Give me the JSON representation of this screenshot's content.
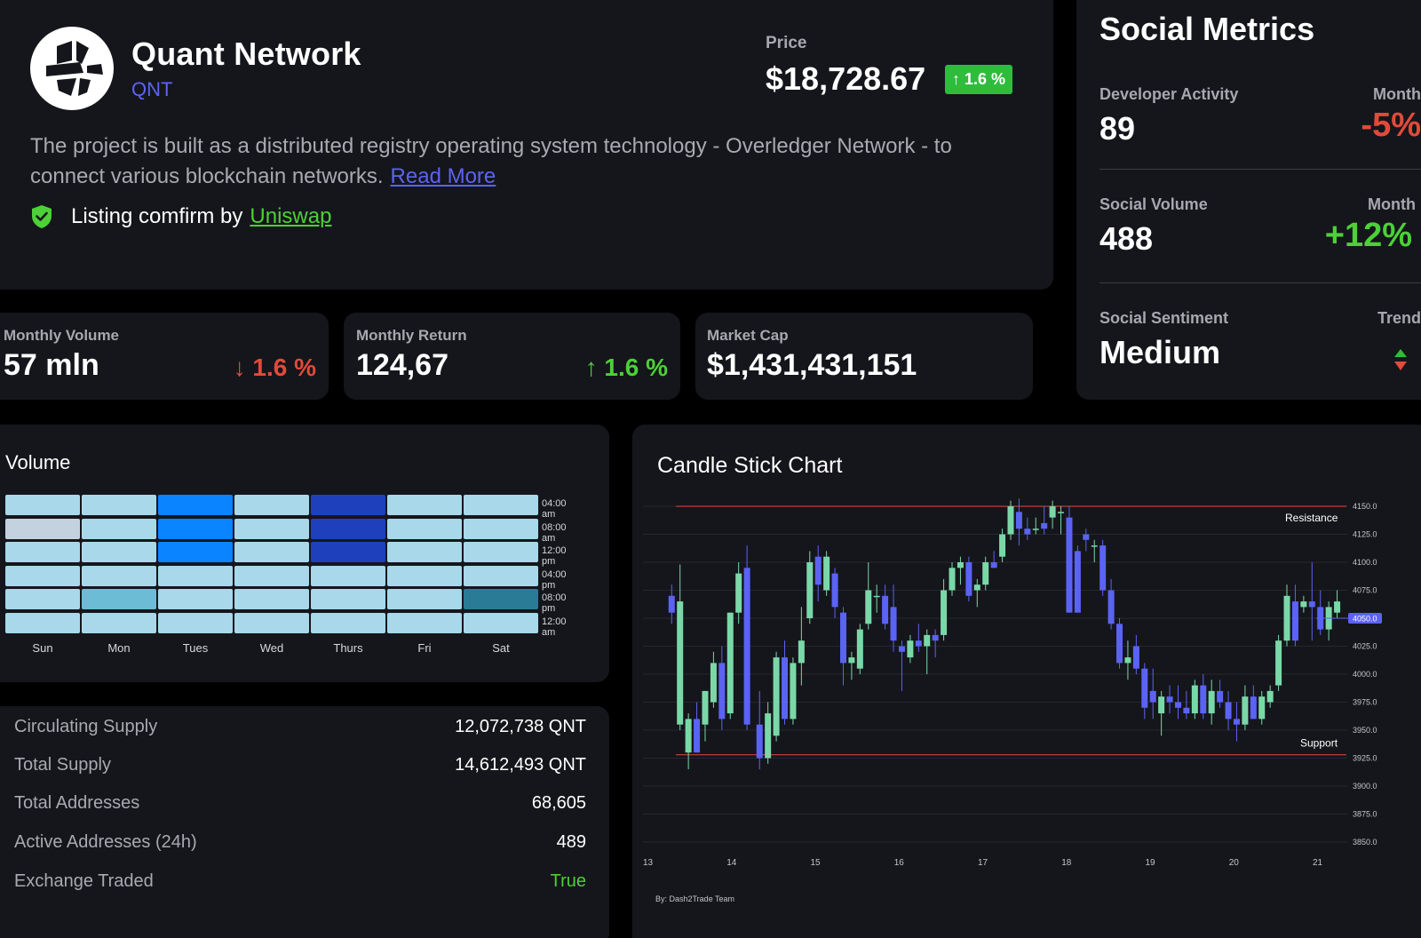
{
  "header": {
    "coin_name": "Quant Network",
    "coin_symbol": "QNT",
    "price_label": "Price",
    "price_value": "$18,728.67",
    "price_change": "↑ 1.6 %",
    "description": "The project is built as a distributed registry operating system technology - Overledger Network - to connect various blockchain networks.",
    "read_more": "Read More",
    "listing_text": "Listing comfirm by",
    "listing_link": "Uniswap",
    "logo_icon": "quant-logo-icon",
    "shield_icon": "shield-check-icon"
  },
  "stats": [
    {
      "label": "Monthly Volume",
      "value": "57 mln",
      "change": "↓ 1.6 %",
      "direction": "down"
    },
    {
      "label": "Monthly Return",
      "value": "124,67",
      "change": "↑ 1.6 %",
      "direction": "up"
    },
    {
      "label": "Market Cap",
      "value": "$1,431,431,151",
      "change": "",
      "direction": "none"
    }
  ],
  "social": {
    "title": "Social Metrics",
    "metrics": [
      {
        "label": "Developer Activity",
        "period": "Month",
        "value": "89",
        "change": "-5%",
        "direction": "down"
      },
      {
        "label": "Social Volume",
        "period": "Month",
        "value": "488",
        "change": "+12%",
        "direction": "up"
      },
      {
        "label": "Social Sentiment",
        "period": "Trend",
        "value": "Medium",
        "change": "",
        "direction": "trend"
      }
    ]
  },
  "volume": {
    "title": "Volume",
    "days": [
      "Sun",
      "Mon",
      "Tues",
      "Wed",
      "Thurs",
      "Fri",
      "Sat"
    ],
    "times": [
      "04:00 am",
      "08:00 am",
      "12:00 pm",
      "04:00 pm",
      "08:00 pm",
      "12:00 am"
    ],
    "colors": {
      "light": "#a8d8ea",
      "pale": "#c4d2e0",
      "bright": "#0a84ff",
      "dark": "#1e40bd",
      "medium": "#6bbcd4",
      "deep": "#2a7b96"
    },
    "grid": [
      [
        "light",
        "light",
        "bright",
        "light",
        "dark",
        "light",
        "light"
      ],
      [
        "pale",
        "light",
        "bright",
        "light",
        "dark",
        "light",
        "light"
      ],
      [
        "light",
        "light",
        "bright",
        "light",
        "dark",
        "light",
        "light"
      ],
      [
        "light",
        "light",
        "light",
        "light",
        "light",
        "light",
        "light"
      ],
      [
        "light",
        "medium",
        "light",
        "light",
        "light",
        "light",
        "deep"
      ],
      [
        "light",
        "light",
        "light",
        "light",
        "light",
        "light",
        "light"
      ]
    ]
  },
  "supply": [
    {
      "label": "Circulating Supply",
      "value": "12,072,738 QNT"
    },
    {
      "label": "Total Supply",
      "value": "14,612,493 QNT"
    },
    {
      "label": "Total Addresses",
      "value": "68,605"
    },
    {
      "label": "Active Addresses (24h)",
      "value": "489"
    },
    {
      "label": "Exchange Traded",
      "value": "True"
    }
  ],
  "chart_data": {
    "type": "candlestick",
    "title": "Candle Stick Chart",
    "credit": "By: Dash2Trade Team",
    "x_labels": [
      "13",
      "14",
      "15",
      "16",
      "17",
      "18",
      "19",
      "20",
      "21"
    ],
    "y_ticks": [
      4150.0,
      4125.0,
      4100.0,
      4075.0,
      4050.0,
      4025.0,
      4000.0,
      3975.0,
      3950.0,
      3925.0,
      3900.0,
      3875.0,
      3850.0
    ],
    "ylim": [
      3850,
      4150
    ],
    "current_price": "4050.0",
    "resistance": {
      "label": "Resistance",
      "value": 4150
    },
    "support": {
      "label": "Support",
      "value": 3928
    },
    "colors": {
      "up": "#7ad8a8",
      "down": "#5b63f5",
      "line": "#e24a3b"
    },
    "candles": [
      {
        "x": 13.3,
        "o": 4070,
        "h": 4080,
        "l": 4045,
        "c": 4055
      },
      {
        "x": 13.4,
        "o": 3955,
        "h": 4098,
        "l": 3950,
        "c": 4065
      },
      {
        "x": 13.5,
        "o": 3930,
        "h": 3965,
        "l": 3915,
        "c": 3960
      },
      {
        "x": 13.6,
        "o": 3960,
        "h": 3975,
        "l": 3930,
        "c": 3930
      },
      {
        "x": 13.7,
        "o": 3955,
        "h": 3985,
        "l": 3940,
        "c": 3985
      },
      {
        "x": 13.8,
        "o": 3975,
        "h": 4020,
        "l": 3970,
        "c": 4010
      },
      {
        "x": 13.9,
        "o": 4010,
        "h": 4025,
        "l": 3950,
        "c": 3960
      },
      {
        "x": 14.0,
        "o": 3965,
        "h": 4055,
        "l": 3960,
        "c": 4055
      },
      {
        "x": 14.1,
        "o": 4055,
        "h": 4100,
        "l": 4045,
        "c": 4090
      },
      {
        "x": 14.2,
        "o": 4095,
        "h": 4115,
        "l": 3950,
        "c": 3955
      },
      {
        "x": 14.35,
        "o": 3955,
        "h": 3985,
        "l": 3915,
        "c": 3925
      },
      {
        "x": 14.45,
        "o": 3925,
        "h": 3975,
        "l": 3920,
        "c": 3965
      },
      {
        "x": 14.55,
        "o": 3945,
        "h": 4020,
        "l": 3940,
        "c": 4015
      },
      {
        "x": 14.65,
        "o": 4015,
        "h": 4030,
        "l": 3955,
        "c": 3960
      },
      {
        "x": 14.75,
        "o": 3960,
        "h": 4015,
        "l": 3955,
        "c": 4010
      },
      {
        "x": 14.85,
        "o": 4010,
        "h": 4060,
        "l": 3990,
        "c": 4030
      },
      {
        "x": 14.95,
        "o": 4050,
        "h": 4110,
        "l": 4045,
        "c": 4100
      },
      {
        "x": 15.05,
        "o": 4105,
        "h": 4115,
        "l": 4065,
        "c": 4080
      },
      {
        "x": 15.15,
        "o": 4075,
        "h": 4110,
        "l": 4070,
        "c": 4105
      },
      {
        "x": 15.25,
        "o": 4090,
        "h": 4095,
        "l": 4050,
        "c": 4060
      },
      {
        "x": 15.35,
        "o": 4055,
        "h": 4060,
        "l": 3990,
        "c": 4010
      },
      {
        "x": 15.45,
        "o": 4010,
        "h": 4020,
        "l": 3995,
        "c": 4015
      },
      {
        "x": 15.55,
        "o": 4005,
        "h": 4045,
        "l": 4000,
        "c": 4040
      },
      {
        "x": 15.65,
        "o": 4045,
        "h": 4100,
        "l": 4040,
        "c": 4075
      },
      {
        "x": 15.75,
        "o": 4070,
        "h": 4080,
        "l": 4055,
        "c": 4070
      },
      {
        "x": 15.85,
        "o": 4070,
        "h": 4080,
        "l": 4040,
        "c": 4045
      },
      {
        "x": 15.95,
        "o": 4060,
        "h": 4080,
        "l": 4020,
        "c": 4030
      },
      {
        "x": 16.05,
        "o": 4025,
        "h": 4030,
        "l": 3985,
        "c": 4020
      },
      {
        "x": 16.15,
        "o": 4015,
        "h": 4035,
        "l": 4010,
        "c": 4030
      },
      {
        "x": 16.25,
        "o": 4030,
        "h": 4045,
        "l": 4020,
        "c": 4025
      },
      {
        "x": 16.35,
        "o": 4025,
        "h": 4040,
        "l": 4000,
        "c": 4035
      },
      {
        "x": 16.45,
        "o": 4035,
        "h": 4040,
        "l": 4015,
        "c": 4030
      },
      {
        "x": 16.55,
        "o": 4035,
        "h": 4085,
        "l": 4030,
        "c": 4075
      },
      {
        "x": 16.65,
        "o": 4075,
        "h": 4100,
        "l": 4070,
        "c": 4095
      },
      {
        "x": 16.75,
        "o": 4095,
        "h": 4105,
        "l": 4080,
        "c": 4100
      },
      {
        "x": 16.85,
        "o": 4100,
        "h": 4105,
        "l": 4065,
        "c": 4070
      },
      {
        "x": 16.95,
        "o": 4075,
        "h": 4085,
        "l": 4060,
        "c": 4080
      },
      {
        "x": 17.05,
        "o": 4080,
        "h": 4105,
        "l": 4075,
        "c": 4100
      },
      {
        "x": 17.15,
        "o": 4100,
        "h": 4110,
        "l": 4095,
        "c": 4095
      },
      {
        "x": 17.25,
        "o": 4105,
        "h": 4130,
        "l": 4100,
        "c": 4125
      },
      {
        "x": 17.35,
        "o": 4125,
        "h": 4155,
        "l": 4120,
        "c": 4150
      },
      {
        "x": 17.45,
        "o": 4145,
        "h": 4157,
        "l": 4115,
        "c": 4130
      },
      {
        "x": 17.55,
        "o": 4130,
        "h": 4140,
        "l": 4120,
        "c": 4125
      },
      {
        "x": 17.65,
        "o": 4130,
        "h": 4140,
        "l": 4125,
        "c": 4130
      },
      {
        "x": 17.75,
        "o": 4135,
        "h": 4150,
        "l": 4125,
        "c": 4130
      },
      {
        "x": 17.85,
        "o": 4140,
        "h": 4155,
        "l": 4130,
        "c": 4150
      },
      {
        "x": 17.95,
        "o": 4145,
        "h": 4150,
        "l": 4125,
        "c": 4145
      },
      {
        "x": 18.05,
        "o": 4140,
        "h": 4150,
        "l": 4055,
        "c": 4055
      },
      {
        "x": 18.15,
        "o": 4110,
        "h": 4115,
        "l": 4055,
        "c": 4055
      },
      {
        "x": 18.25,
        "o": 4125,
        "h": 4130,
        "l": 4110,
        "c": 4120
      },
      {
        "x": 18.35,
        "o": 4115,
        "h": 4120,
        "l": 4100,
        "c": 4115
      },
      {
        "x": 18.45,
        "o": 4115,
        "h": 4120,
        "l": 4070,
        "c": 4075
      },
      {
        "x": 18.55,
        "o": 4075,
        "h": 4085,
        "l": 4040,
        "c": 4045
      },
      {
        "x": 18.65,
        "o": 4045,
        "h": 4050,
        "l": 4005,
        "c": 4010
      },
      {
        "x": 18.75,
        "o": 4010,
        "h": 4030,
        "l": 3995,
        "c": 4015
      },
      {
        "x": 18.85,
        "o": 4025,
        "h": 4035,
        "l": 4000,
        "c": 4005
      },
      {
        "x": 18.95,
        "o": 4005,
        "h": 4010,
        "l": 3960,
        "c": 3970
      },
      {
        "x": 19.05,
        "o": 3985,
        "h": 4005,
        "l": 3960,
        "c": 3975
      },
      {
        "x": 19.15,
        "o": 3965,
        "h": 3985,
        "l": 3945,
        "c": 3980
      },
      {
        "x": 19.25,
        "o": 3980,
        "h": 3990,
        "l": 3965,
        "c": 3975
      },
      {
        "x": 19.35,
        "o": 3975,
        "h": 3990,
        "l": 3960,
        "c": 3970
      },
      {
        "x": 19.45,
        "o": 3970,
        "h": 3985,
        "l": 3960,
        "c": 3965
      },
      {
        "x": 19.55,
        "o": 3965,
        "h": 3995,
        "l": 3960,
        "c": 3990
      },
      {
        "x": 19.65,
        "o": 3990,
        "h": 4000,
        "l": 3960,
        "c": 3965
      },
      {
        "x": 19.75,
        "o": 3965,
        "h": 3995,
        "l": 3955,
        "c": 3985
      },
      {
        "x": 19.85,
        "o": 3985,
        "h": 3995,
        "l": 3970,
        "c": 3975
      },
      {
        "x": 19.95,
        "o": 3975,
        "h": 3985,
        "l": 3950,
        "c": 3960
      },
      {
        "x": 20.05,
        "o": 3960,
        "h": 3975,
        "l": 3940,
        "c": 3955
      },
      {
        "x": 20.15,
        "o": 3955,
        "h": 3990,
        "l": 3950,
        "c": 3980
      },
      {
        "x": 20.25,
        "o": 3980,
        "h": 3990,
        "l": 3960,
        "c": 3960
      },
      {
        "x": 20.35,
        "o": 3960,
        "h": 3985,
        "l": 3955,
        "c": 3980
      },
      {
        "x": 20.45,
        "o": 3975,
        "h": 3990,
        "l": 3970,
        "c": 3985
      },
      {
        "x": 20.55,
        "o": 3990,
        "h": 4035,
        "l": 3985,
        "c": 4030
      },
      {
        "x": 20.65,
        "o": 4030,
        "h": 4080,
        "l": 4025,
        "c": 4070
      },
      {
        "x": 20.75,
        "o": 4065,
        "h": 4080,
        "l": 4025,
        "c": 4030
      },
      {
        "x": 20.85,
        "o": 4060,
        "h": 4070,
        "l": 4055,
        "c": 4065
      },
      {
        "x": 20.95,
        "o": 4065,
        "h": 4100,
        "l": 4030,
        "c": 4060
      },
      {
        "x": 21.05,
        "o": 4060,
        "h": 4075,
        "l": 4035,
        "c": 4040
      },
      {
        "x": 21.15,
        "o": 4040,
        "h": 4065,
        "l": 4030,
        "c": 4060
      },
      {
        "x": 21.25,
        "o": 4055,
        "h": 4075,
        "l": 4050,
        "c": 4065
      }
    ]
  }
}
